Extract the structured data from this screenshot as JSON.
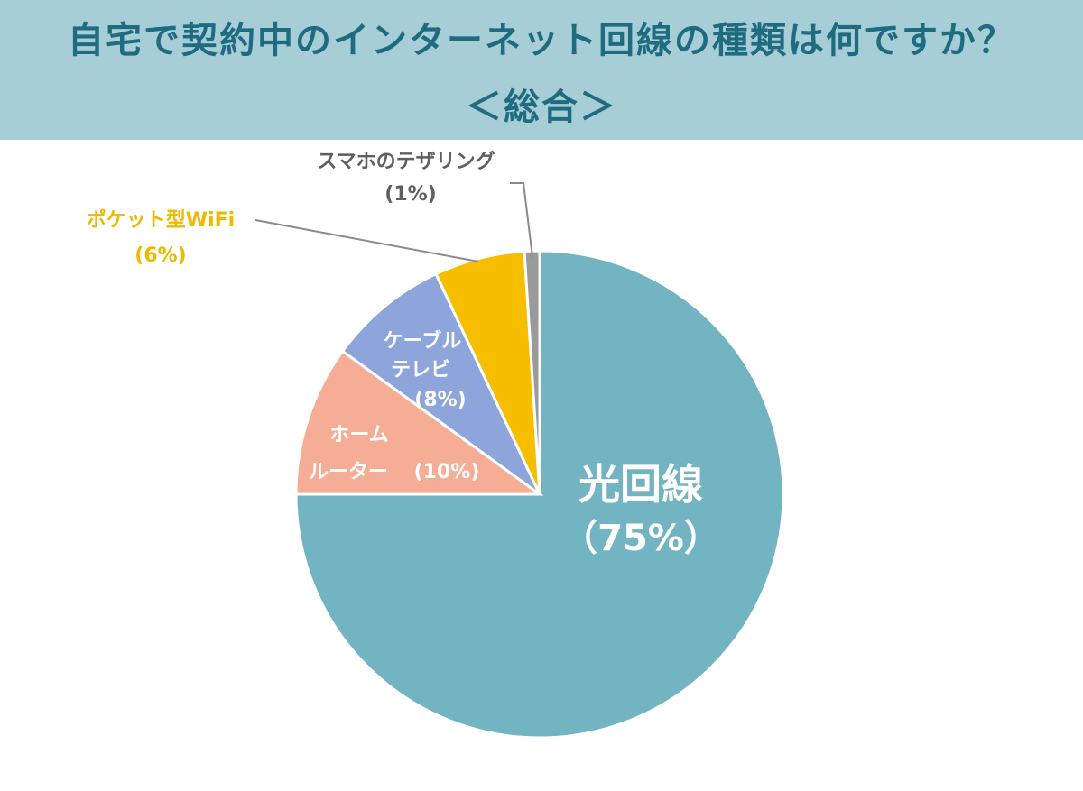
{
  "header": {
    "title": "自宅で契約中のインターネット回線の種類は何ですか？",
    "subtitle": "＜総合＞"
  },
  "chart_data": {
    "type": "pie",
    "title": "自宅で契約中のインターネット回線の種類は何ですか？",
    "subtitle": "＜総合＞",
    "slices": [
      {
        "label": "光回線",
        "value_text": "（75%）",
        "value": 75,
        "color": "#72b4c1",
        "label_color": "#ffffff"
      },
      {
        "label": "ホーム ルーター",
        "value_text": "(10%)",
        "value": 10,
        "color": "#f5ad96",
        "label_color": "#ffffff"
      },
      {
        "label": "ケーブル テレビ",
        "value_text": "(8%)",
        "value": 8,
        "color": "#8ea5dc",
        "label_color": "#ffffff"
      },
      {
        "label": "ポケット型WiFi",
        "value_text": "(6%)",
        "value": 6,
        "color": "#f7be00",
        "label_color": "#f0b800"
      },
      {
        "label": "スマホのテザリング",
        "value_text": "(1%)",
        "value": 1,
        "color": "#9a9a9a",
        "label_color": "#5f5f5f"
      }
    ],
    "start_angle_deg": 0,
    "direction": "clockwise"
  }
}
